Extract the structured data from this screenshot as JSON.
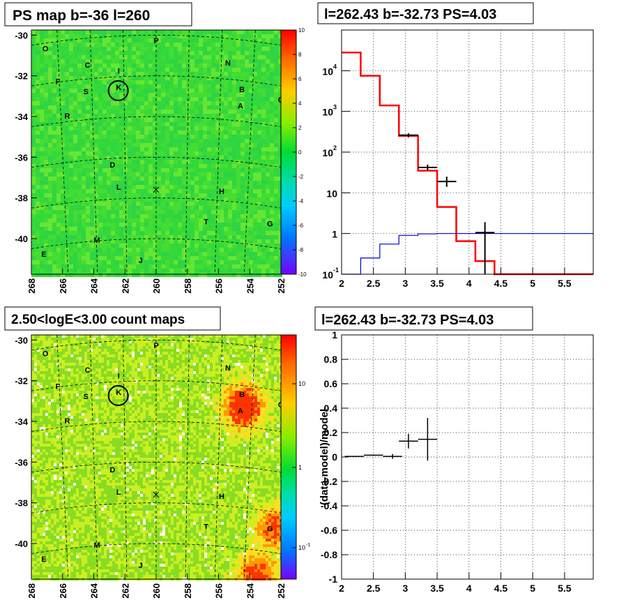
{
  "colors": {
    "frame": "#000000",
    "model_line": "#ff0000",
    "bg_line": "#0000cc",
    "data_points": "#000000",
    "grid": "#000000",
    "map_base_top": "#33dd33",
    "map_base_bottom": "#bbee22"
  },
  "chart_data": [
    {
      "id": "ps-map",
      "type": "heatmap",
      "title": "PS map b=-36 l=260",
      "xlabel": "",
      "ylabel": "",
      "xlim": [
        268,
        252
      ],
      "ylim": [
        -41.75,
        -29.75
      ],
      "x_ticks": [
        268,
        266,
        264,
        262,
        260,
        258,
        256,
        254,
        252
      ],
      "y_ticks": [
        -30,
        -32,
        -34,
        -36,
        -38,
        -40
      ],
      "colorbar": {
        "scale": "linear",
        "min": -10,
        "max": 10,
        "ticks": [
          10,
          8,
          6,
          4,
          2,
          0,
          -2,
          -4,
          -6,
          -8,
          -10
        ]
      },
      "source_labels": [
        {
          "label": "O",
          "l": 267.1,
          "b": -30.8
        },
        {
          "label": "P",
          "l": 260.0,
          "b": -30.4
        },
        {
          "label": "C",
          "l": 264.4,
          "b": -31.6
        },
        {
          "label": "N",
          "l": 255.4,
          "b": -31.5
        },
        {
          "label": "I",
          "l": 262.4,
          "b": -31.9
        },
        {
          "label": "F",
          "l": 266.3,
          "b": -32.4
        },
        {
          "label": "K",
          "l": 262.4,
          "b": -32.7
        },
        {
          "label": "S",
          "l": 264.5,
          "b": -32.9
        },
        {
          "label": "B",
          "l": 254.5,
          "b": -32.8
        },
        {
          "label": "Q",
          "l": 252.0,
          "b": -33.3
        },
        {
          "label": "A",
          "l": 254.6,
          "b": -33.6
        },
        {
          "label": "R",
          "l": 265.7,
          "b": -34.1
        },
        {
          "label": "D",
          "l": 262.8,
          "b": -36.5
        },
        {
          "label": "L",
          "l": 262.4,
          "b": -37.6
        },
        {
          "label": "H",
          "l": 255.8,
          "b": -37.8
        },
        {
          "label": "T",
          "l": 256.8,
          "b": -39.3
        },
        {
          "label": "G",
          "l": 252.7,
          "b": -39.4
        },
        {
          "label": "M",
          "l": 263.8,
          "b": -40.2
        },
        {
          "label": "E",
          "l": 267.2,
          "b": -40.9
        },
        {
          "label": "J",
          "l": 261.0,
          "b": -41.2
        }
      ],
      "target": {
        "l": 262.43,
        "b": -32.73
      },
      "center_marker": {
        "l": 260.0,
        "b": -37.6
      }
    },
    {
      "id": "spectrum",
      "type": "line",
      "title": "l=262.43 b=-32.73 PS=4.03",
      "xlabel": "",
      "ylabel": "",
      "xlim": [
        2.0,
        5.95
      ],
      "ylim": [
        0.1,
        100000
      ],
      "y_scale": "log",
      "x_ticks": [
        2,
        2.5,
        3,
        3.5,
        4,
        4.5,
        5,
        5.5
      ],
      "y_ticks": [
        {
          "v": 0.1,
          "t": "10"
        },
        {
          "v": 1,
          "t": "1"
        },
        {
          "v": 10,
          "t": "10"
        },
        {
          "v": 100,
          "t": "10"
        },
        {
          "v": 1000,
          "t": "10"
        },
        {
          "v": 10000,
          "t": "10"
        }
      ],
      "y_tick_exponents": [
        "-1",
        "",
        "",
        "2",
        "3",
        "4"
      ],
      "grid": true,
      "series": [
        {
          "kind": "model",
          "bin_edges": [
            2.0,
            2.3,
            2.6,
            2.9,
            3.2,
            3.5,
            3.8,
            4.1,
            4.4,
            4.7,
            5.0,
            5.3,
            5.6,
            5.95
          ],
          "values": [
            28000,
            7500,
            1400,
            250,
            35,
            4.5,
            0.65,
            0.21,
            0.1,
            0.1,
            0.1,
            0.1,
            0.1
          ]
        },
        {
          "kind": "background",
          "bin_edges": [
            2.0,
            2.3,
            2.6,
            2.9,
            3.2,
            3.5,
            3.8,
            4.1,
            4.4,
            4.7,
            5.0,
            5.3,
            5.6,
            5.95
          ],
          "values": [
            0.1,
            0.25,
            0.55,
            0.9,
            0.98,
            1.0,
            1.0,
            1.0,
            1.0,
            1.0,
            1.0,
            1.0,
            1.0
          ]
        },
        {
          "kind": "data",
          "points": [
            {
              "x": 3.05,
              "xerr": 0.15,
              "y": 260,
              "ylo": 230,
              "yhi": 290
            },
            {
              "x": 3.35,
              "xerr": 0.15,
              "y": 42,
              "ylo": 36,
              "yhi": 49
            },
            {
              "x": 3.65,
              "xerr": 0.15,
              "y": 19,
              "ylo": 14,
              "yhi": 25
            },
            {
              "x": 4.25,
              "xerr": 0.15,
              "y": 1.05,
              "ylo": 0.1,
              "yhi": 1.9
            }
          ]
        }
      ]
    },
    {
      "id": "count-map",
      "type": "heatmap",
      "title": "2.50<logE<3.00 count maps",
      "xlabel": "",
      "ylabel": "",
      "xlim": [
        268,
        252
      ],
      "ylim": [
        -41.75,
        -29.75
      ],
      "x_ticks": [
        268,
        266,
        264,
        262,
        260,
        258,
        256,
        254,
        252
      ],
      "y_ticks": [
        -30,
        -32,
        -34,
        -36,
        -38,
        -40
      ],
      "colorbar": {
        "scale": "log",
        "ticks": [
          {
            "t": "10",
            "e": ""
          },
          {
            "t": "1",
            "e": ""
          },
          {
            "t": "10",
            "e": "-1"
          }
        ]
      },
      "source_labels": [
        {
          "label": "O",
          "l": 267.1,
          "b": -30.8
        },
        {
          "label": "P",
          "l": 260.0,
          "b": -30.4
        },
        {
          "label": "C",
          "l": 264.4,
          "b": -31.6
        },
        {
          "label": "N",
          "l": 255.4,
          "b": -31.5
        },
        {
          "label": "I",
          "l": 262.4,
          "b": -31.9
        },
        {
          "label": "F",
          "l": 266.3,
          "b": -32.4
        },
        {
          "label": "K",
          "l": 262.4,
          "b": -32.7
        },
        {
          "label": "S",
          "l": 264.5,
          "b": -32.9
        },
        {
          "label": "B",
          "l": 254.5,
          "b": -32.8
        },
        {
          "label": "Q",
          "l": 252.0,
          "b": -33.3
        },
        {
          "label": "A",
          "l": 254.6,
          "b": -33.6
        },
        {
          "label": "R",
          "l": 265.7,
          "b": -34.1
        },
        {
          "label": "D",
          "l": 262.8,
          "b": -36.5
        },
        {
          "label": "L",
          "l": 262.4,
          "b": -37.6
        },
        {
          "label": "H",
          "l": 255.8,
          "b": -37.8
        },
        {
          "label": "T",
          "l": 256.8,
          "b": -39.3
        },
        {
          "label": "G",
          "l": 252.7,
          "b": -39.4
        },
        {
          "label": "M",
          "l": 263.8,
          "b": -40.2
        },
        {
          "label": "E",
          "l": 267.2,
          "b": -40.9
        },
        {
          "label": "J",
          "l": 261.0,
          "b": -41.2
        }
      ],
      "target": {
        "l": 262.43,
        "b": -32.73
      },
      "center_marker": {
        "l": 260.0,
        "b": -37.6
      },
      "hot_spots": [
        {
          "l": 254.5,
          "b": -33.2,
          "level": 0.95
        },
        {
          "l": 252.4,
          "b": -39.2,
          "level": 0.7
        },
        {
          "l": 253.6,
          "b": -41.5,
          "level": 0.75
        }
      ]
    },
    {
      "id": "residuals",
      "type": "scatter",
      "title": "l=262.43 b=-32.73 PS=4.03",
      "xlabel": "",
      "ylabel": "(data-model)/model",
      "xlim": [
        2.0,
        5.95
      ],
      "ylim": [
        -1,
        1
      ],
      "x_ticks": [
        2,
        2.5,
        3,
        3.5,
        4,
        4.5,
        5,
        5.5
      ],
      "y_ticks": [
        1,
        0.8,
        0.6,
        0.4,
        0.2,
        0,
        -0.2,
        -0.4,
        -0.6,
        -0.8,
        -1
      ],
      "grid": true,
      "points": [
        {
          "x": 2.2,
          "xerr": 0.15,
          "y": 0.005,
          "yerr": 0.004
        },
        {
          "x": 2.5,
          "xerr": 0.15,
          "y": 0.015,
          "yerr": 0.006
        },
        {
          "x": 2.8,
          "xerr": 0.15,
          "y": 0.005,
          "yerr": 0.02
        },
        {
          "x": 3.05,
          "xerr": 0.15,
          "y": 0.13,
          "yerr": 0.06
        },
        {
          "x": 3.35,
          "xerr": 0.15,
          "y": 0.145,
          "yerr": 0.175
        }
      ]
    }
  ]
}
